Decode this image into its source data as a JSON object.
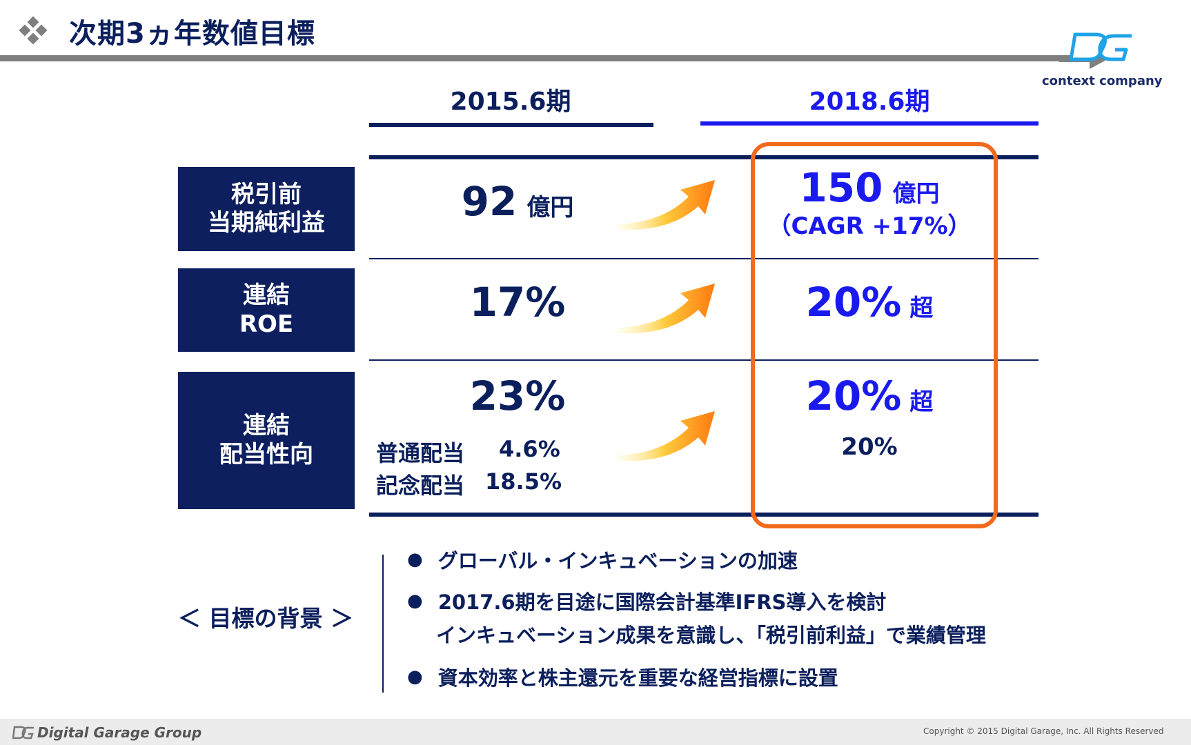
{
  "header": {
    "title": "次期3ヵ年数値目標",
    "logo_text": "context company"
  },
  "columns": {
    "prev": "2015.6期",
    "target": "2018.6期"
  },
  "rows": {
    "profit": {
      "label_line1": "税引前",
      "label_line2": "当期純利益",
      "prev_value": "92",
      "prev_unit": "億円",
      "target_value": "150",
      "target_unit": "億円",
      "target_note": "（CAGR +17%）"
    },
    "roe": {
      "label_line1": "連結",
      "label_line2": "ROE",
      "prev_value": "17%",
      "target_value": "20%",
      "target_unit": "超"
    },
    "payout": {
      "label_line1": "連結",
      "label_line2": "配当性向",
      "prev_value": "23%",
      "ordinary_label": "普通配当",
      "ordinary_value": "4.6%",
      "commem_label": "記念配当",
      "commem_value": "18.5%",
      "target_value": "20%",
      "target_unit": "超",
      "target_sub": "20%"
    }
  },
  "background": {
    "label": "＜ 目標の背景 ＞",
    "bullet_symbol": "●",
    "items": [
      "グローバル・インキュベーションの加速",
      "2017.6期を目途に国際会計基準IFRS導入を検討",
      "インキュベーション成果を意識し、「税引前利益」で業績管理",
      "資本効率と株主還元を重要な経営指標に設置"
    ]
  },
  "footer": {
    "company": "Digital Garage Group",
    "copyright": "Copyright  © 2015  Digital  Garage,  Inc.  All  Rights  Reserved"
  },
  "colors": {
    "navy": "#0b1f5c",
    "blue": "#1a1aee",
    "highlight": "#f26a1d",
    "arrow_start": "#fff6b0",
    "arrow_end": "#ff7a10"
  }
}
